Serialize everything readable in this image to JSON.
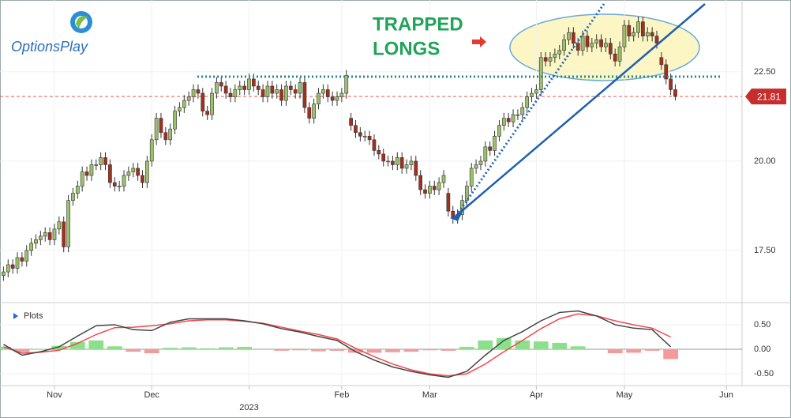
{
  "chart_data": {
    "type": "candlestick",
    "logo": "OptionsPlay",
    "annotations": [
      "TRAPPED",
      "LONGS"
    ],
    "up_color": "#9dc16b",
    "down_color": "#a3301f",
    "x": [
      -11,
      -10,
      -9,
      -8,
      -7,
      -6,
      -5,
      -4,
      -3,
      -2,
      -1,
      0,
      1,
      2,
      3,
      4,
      5,
      6,
      7,
      8,
      9,
      10,
      11,
      12,
      13,
      14,
      15,
      16,
      17,
      18,
      19,
      20,
      21,
      22,
      23,
      24,
      25,
      26,
      27,
      28,
      29,
      30,
      31,
      32,
      33,
      34,
      35,
      36,
      37,
      38,
      39,
      40,
      41,
      42,
      43,
      44,
      45,
      46,
      47,
      48,
      49,
      50,
      51,
      52,
      53,
      54,
      55,
      56,
      57,
      58,
      59,
      60,
      61,
      62,
      63,
      64,
      65,
      66,
      67,
      68,
      69,
      70,
      71,
      72,
      73,
      74,
      75,
      76,
      77,
      78,
      79,
      80,
      81,
      82,
      83,
      84,
      85,
      86,
      87,
      88,
      89,
      90,
      91,
      92,
      93,
      94,
      95,
      96,
      97,
      98,
      99,
      100,
      101,
      102,
      103,
      104,
      105,
      106,
      107,
      108,
      109,
      110,
      111,
      112,
      113,
      114,
      115,
      116,
      117,
      118,
      119,
      120,
      121,
      122,
      123,
      124,
      125,
      126,
      127,
      128,
      129,
      130,
      131,
      132,
      133,
      134
    ],
    "candles": [
      [
        16.8,
        17.05,
        16.65,
        16.9
      ],
      [
        16.9,
        17.25,
        16.75,
        17.1
      ],
      [
        17.1,
        17.25,
        16.85,
        17.0
      ],
      [
        17.0,
        17.45,
        16.85,
        17.3
      ],
      [
        17.3,
        17.45,
        17.05,
        17.2
      ],
      [
        17.2,
        17.65,
        17.05,
        17.5
      ],
      [
        17.5,
        17.85,
        17.35,
        17.7
      ],
      [
        17.7,
        17.95,
        17.55,
        17.8
      ],
      [
        17.8,
        18.05,
        17.65,
        17.9
      ],
      [
        17.9,
        18.15,
        17.75,
        18.0
      ],
      [
        18.0,
        18.15,
        17.65,
        17.8
      ],
      [
        17.8,
        18.25,
        17.65,
        18.1
      ],
      [
        18.1,
        18.45,
        17.95,
        18.3
      ],
      [
        18.3,
        18.45,
        17.45,
        17.6
      ],
      [
        17.6,
        19.05,
        17.45,
        18.9
      ],
      [
        18.9,
        19.25,
        18.75,
        19.1
      ],
      [
        19.1,
        19.45,
        18.95,
        19.3
      ],
      [
        19.3,
        19.85,
        19.15,
        19.7
      ],
      [
        19.7,
        19.85,
        19.45,
        19.6
      ],
      [
        19.6,
        20.05,
        19.45,
        19.9
      ],
      [
        19.9,
        20.05,
        19.75,
        19.9
      ],
      [
        19.9,
        20.25,
        19.75,
        20.1
      ],
      [
        20.1,
        20.25,
        19.75,
        19.9
      ],
      [
        19.9,
        20.05,
        19.25,
        19.4
      ],
      [
        19.4,
        19.55,
        19.15,
        19.3
      ],
      [
        19.3,
        19.45,
        19.15,
        19.3
      ],
      [
        19.3,
        19.75,
        19.15,
        19.6
      ],
      [
        19.6,
        19.85,
        19.45,
        19.7
      ],
      [
        19.7,
        19.95,
        19.55,
        19.8
      ],
      [
        19.8,
        19.95,
        19.45,
        19.6
      ],
      [
        19.6,
        19.75,
        19.25,
        19.4
      ],
      [
        19.4,
        20.15,
        19.25,
        20.0
      ],
      [
        20.0,
        20.75,
        19.85,
        20.6
      ],
      [
        20.6,
        21.35,
        20.45,
        21.2
      ],
      [
        21.2,
        21.35,
        20.65,
        20.8
      ],
      [
        20.8,
        20.95,
        20.45,
        20.6
      ],
      [
        20.6,
        21.05,
        20.45,
        20.9
      ],
      [
        20.9,
        21.55,
        20.75,
        21.4
      ],
      [
        21.4,
        21.65,
        21.25,
        21.5
      ],
      [
        21.5,
        21.85,
        21.35,
        21.7
      ],
      [
        21.7,
        21.95,
        21.55,
        21.8
      ],
      [
        21.8,
        22.15,
        21.65,
        22.0
      ],
      [
        22.0,
        22.15,
        21.75,
        21.9
      ],
      [
        21.9,
        22.05,
        21.25,
        21.4
      ],
      [
        21.4,
        21.55,
        21.15,
        21.3
      ],
      [
        21.3,
        22.05,
        21.15,
        21.9
      ],
      [
        21.9,
        22.35,
        21.75,
        22.2
      ],
      [
        22.2,
        22.35,
        21.95,
        22.1
      ],
      [
        22.1,
        22.25,
        21.75,
        21.9
      ],
      [
        21.9,
        22.05,
        21.65,
        21.8
      ],
      [
        21.8,
        22.15,
        21.65,
        22.0
      ],
      [
        22.0,
        22.25,
        21.85,
        22.1
      ],
      [
        22.1,
        22.25,
        21.85,
        22.0
      ],
      [
        22.0,
        22.45,
        21.85,
        22.3
      ],
      [
        22.3,
        22.45,
        21.95,
        22.1
      ],
      [
        22.1,
        22.25,
        21.85,
        22.0
      ],
      [
        22.0,
        22.15,
        21.65,
        21.8
      ],
      [
        21.8,
        22.25,
        21.65,
        22.1
      ],
      [
        22.1,
        22.25,
        21.75,
        21.9
      ],
      [
        21.9,
        22.15,
        21.75,
        22.0
      ],
      [
        22.0,
        22.15,
        21.55,
        21.7
      ],
      [
        21.7,
        22.25,
        21.55,
        22.1
      ],
      [
        22.1,
        22.25,
        21.85,
        22.0
      ],
      [
        22.0,
        22.15,
        21.75,
        21.9
      ],
      [
        21.9,
        22.35,
        21.75,
        22.2
      ],
      [
        22.2,
        22.35,
        21.35,
        21.5
      ],
      [
        21.5,
        21.65,
        21.05,
        21.2
      ],
      [
        21.2,
        21.75,
        21.05,
        21.6
      ],
      [
        21.6,
        22.05,
        21.45,
        21.9
      ],
      [
        21.9,
        22.15,
        21.75,
        22.0
      ],
      [
        22.0,
        22.15,
        21.65,
        21.8
      ],
      [
        21.8,
        21.95,
        21.55,
        21.7
      ],
      [
        21.7,
        21.95,
        21.55,
        21.8
      ],
      [
        21.8,
        22.05,
        21.65,
        21.9
      ],
      [
        21.9,
        22.55,
        21.75,
        22.4
      ],
      [
        21.2,
        21.35,
        20.85,
        21.0
      ],
      [
        21.0,
        21.15,
        20.65,
        20.8
      ],
      [
        20.8,
        20.95,
        20.55,
        20.7
      ],
      [
        20.7,
        20.85,
        20.55,
        20.7
      ],
      [
        20.7,
        20.85,
        20.45,
        20.6
      ],
      [
        20.6,
        20.75,
        20.15,
        20.3
      ],
      [
        20.3,
        20.45,
        20.05,
        20.2
      ],
      [
        20.2,
        20.35,
        19.85,
        20.0
      ],
      [
        20.0,
        20.15,
        19.85,
        20.0
      ],
      [
        20.0,
        20.15,
        19.75,
        19.9
      ],
      [
        19.9,
        20.25,
        19.75,
        20.1
      ],
      [
        20.1,
        20.25,
        19.65,
        19.8
      ],
      [
        19.8,
        20.05,
        19.65,
        19.9
      ],
      [
        19.9,
        20.15,
        19.75,
        20.0
      ],
      [
        20.0,
        20.15,
        19.45,
        19.6
      ],
      [
        19.6,
        19.75,
        19.05,
        19.2
      ],
      [
        19.2,
        19.35,
        18.95,
        19.1
      ],
      [
        19.1,
        19.45,
        18.95,
        19.3
      ],
      [
        19.3,
        19.45,
        19.05,
        19.2
      ],
      [
        19.2,
        19.55,
        19.05,
        19.4
      ],
      [
        19.4,
        19.75,
        19.25,
        19.6
      ],
      [
        19.1,
        19.25,
        18.45,
        18.6
      ],
      [
        18.6,
        18.75,
        18.25,
        18.4
      ],
      [
        18.4,
        18.65,
        18.25,
        18.5
      ],
      [
        18.5,
        19.05,
        18.35,
        18.9
      ],
      [
        18.9,
        19.45,
        18.75,
        19.3
      ],
      [
        19.3,
        19.95,
        19.15,
        19.8
      ],
      [
        19.8,
        20.05,
        19.65,
        19.9
      ],
      [
        19.9,
        20.15,
        19.75,
        20.0
      ],
      [
        20.0,
        20.55,
        19.85,
        20.4
      ],
      [
        20.4,
        20.55,
        20.15,
        20.3
      ],
      [
        20.3,
        20.85,
        20.15,
        20.7
      ],
      [
        20.7,
        21.15,
        20.55,
        21.0
      ],
      [
        21.0,
        21.35,
        20.85,
        21.2
      ],
      [
        21.2,
        21.35,
        20.95,
        21.1
      ],
      [
        21.1,
        21.45,
        20.95,
        21.3
      ],
      [
        21.3,
        21.45,
        21.15,
        21.3
      ],
      [
        21.3,
        21.65,
        21.15,
        21.5
      ],
      [
        21.5,
        21.95,
        21.35,
        21.8
      ],
      [
        21.8,
        22.05,
        21.65,
        21.9
      ],
      [
        21.9,
        22.15,
        21.75,
        22.0
      ],
      [
        22.0,
        23.05,
        21.85,
        22.9
      ],
      [
        22.9,
        23.05,
        22.65,
        22.8
      ],
      [
        22.8,
        23.05,
        22.65,
        22.9
      ],
      [
        22.9,
        23.15,
        22.75,
        23.0
      ],
      [
        23.0,
        23.25,
        22.85,
        23.1
      ],
      [
        23.1,
        23.55,
        22.95,
        23.4
      ],
      [
        23.4,
        23.75,
        23.25,
        23.6
      ],
      [
        23.6,
        23.75,
        23.15,
        23.3
      ],
      [
        23.3,
        23.45,
        22.95,
        23.1
      ],
      [
        23.1,
        23.65,
        22.95,
        23.5
      ],
      [
        23.5,
        23.65,
        23.05,
        23.2
      ],
      [
        23.2,
        23.45,
        23.05,
        23.3
      ],
      [
        23.3,
        23.55,
        23.15,
        23.4
      ],
      [
        23.4,
        23.55,
        23.05,
        23.2
      ],
      [
        23.2,
        23.45,
        23.05,
        23.3
      ],
      [
        23.3,
        23.45,
        22.85,
        23.0
      ],
      [
        23.0,
        23.15,
        22.65,
        22.8
      ],
      [
        22.8,
        23.35,
        22.65,
        23.2
      ],
      [
        23.2,
        23.95,
        23.05,
        23.8
      ],
      [
        23.8,
        23.95,
        23.35,
        23.5
      ],
      [
        23.5,
        23.75,
        23.35,
        23.6
      ],
      [
        23.6,
        24.05,
        23.45,
        23.9
      ],
      [
        23.9,
        24.05,
        23.35,
        23.5
      ],
      [
        23.5,
        23.75,
        23.35,
        23.6
      ],
      [
        23.6,
        23.75,
        23.35,
        23.5
      ],
      [
        23.5,
        23.65,
        23.15,
        23.3
      ],
      [
        22.9,
        23.05,
        22.55,
        22.7
      ],
      [
        22.7,
        22.85,
        22.15,
        22.3
      ],
      [
        22.3,
        22.45,
        21.85,
        22.0
      ],
      [
        22.0,
        22.15,
        21.7,
        21.81
      ]
    ],
    "xlim": [
      -11.75,
      148.4
    ],
    "xticks": [
      {
        "value": 0,
        "label": "Nov"
      },
      {
        "value": 21,
        "label": "Dec"
      },
      {
        "value": 42,
        "label": "2023"
      },
      {
        "value": 62,
        "label": "Feb"
      },
      {
        "value": 81,
        "label": "Mar"
      },
      {
        "value": 104,
        "label": "Apr"
      },
      {
        "value": 123,
        "label": "May"
      },
      {
        "value": 145,
        "label": "Jun"
      }
    ],
    "ylim": [
      16.04,
      24.51
    ],
    "yticks": [
      {
        "value": 17.5,
        "label": "17.50"
      },
      {
        "value": 20,
        "label": "20.00"
      },
      {
        "value": 22.5,
        "label": "22.50"
      }
    ],
    "last_price": 21.81,
    "grid": true,
    "panel": {
      "type": "macd",
      "label": "Plots",
      "x": [
        -11,
        -7,
        -3,
        1,
        5,
        9,
        13,
        17,
        21,
        25,
        29,
        33,
        37,
        41,
        45,
        49,
        53,
        57,
        61,
        65,
        69,
        73,
        77,
        81,
        85,
        89,
        93,
        97,
        101,
        105,
        109,
        113,
        117,
        121,
        125,
        129,
        133
      ],
      "macd": [
        0.1,
        -0.12,
        -0.05,
        0.05,
        0.27,
        0.48,
        0.5,
        0.4,
        0.38,
        0.55,
        0.62,
        0.62,
        0.62,
        0.58,
        0.52,
        0.42,
        0.35,
        0.26,
        0.18,
        -0.05,
        -0.22,
        -0.36,
        -0.45,
        -0.52,
        -0.57,
        -0.45,
        -0.12,
        0.18,
        0.36,
        0.58,
        0.75,
        0.78,
        0.68,
        0.5,
        0.43,
        0.4,
        0.05
      ],
      "signal": [
        0.05,
        -0.08,
        -0.06,
        -0.02,
        0.12,
        0.3,
        0.44,
        0.45,
        0.48,
        0.52,
        0.58,
        0.6,
        0.6,
        0.57,
        0.53,
        0.45,
        0.37,
        0.3,
        0.21,
        0.02,
        -0.15,
        -0.3,
        -0.42,
        -0.5,
        -0.54,
        -0.5,
        -0.3,
        -0.05,
        0.18,
        0.42,
        0.62,
        0.72,
        0.68,
        0.58,
        0.5,
        0.43,
        0.25
      ],
      "histogram": [
        0.05,
        -0.06,
        0.01,
        0.07,
        0.15,
        0.18,
        0.06,
        -0.05,
        -0.08,
        0.03,
        0.04,
        0.02,
        0.04,
        0.05,
        -0.01,
        -0.03,
        -0.02,
        -0.04,
        -0.03,
        -0.07,
        -0.07,
        -0.06,
        -0.05,
        -0.02,
        -0.03,
        0.05,
        0.18,
        0.23,
        0.18,
        0.16,
        0.13,
        0.06,
        0.0,
        -0.08,
        -0.07,
        -0.03,
        -0.2
      ],
      "macd_color": "#444444",
      "signal_color": "#f0484e",
      "positive_color": "#8be08b",
      "negative_color": "#f59a9a",
      "ylim": [
        -0.74,
        0.95
      ],
      "yticks": [
        {
          "value": -0.5,
          "label": "-0.50"
        },
        {
          "value": 0,
          "label": "0.00"
        },
        {
          "value": 0.5,
          "label": "0.50"
        }
      ]
    }
  }
}
